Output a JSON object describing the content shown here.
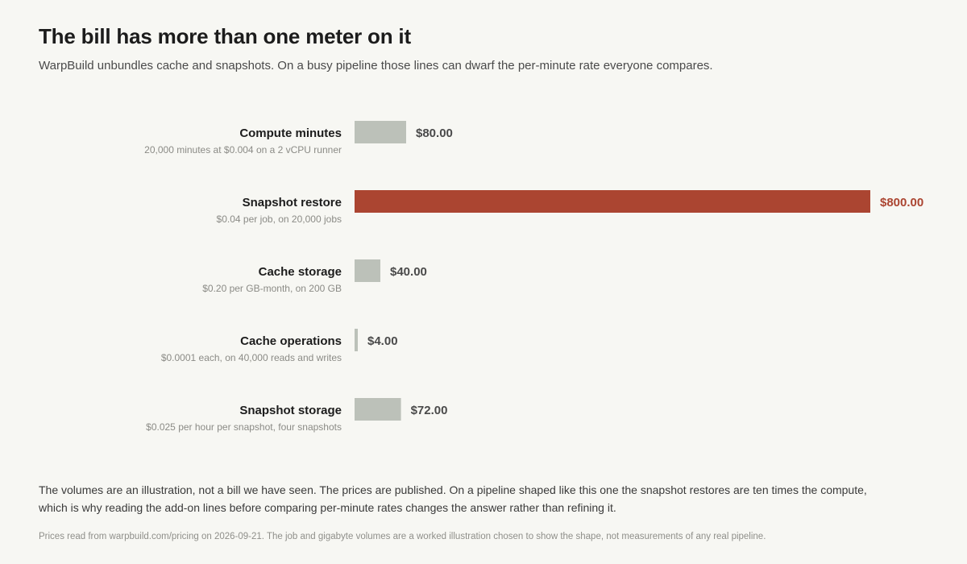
{
  "title": "The bill has more than one meter on it",
  "subtitle": "WarpBuild unbundles cache and snapshots. On a busy pipeline those lines can dwarf the per-minute rate everyone compares.",
  "chart_data": {
    "type": "bar",
    "orientation": "horizontal",
    "categories": [
      "Compute minutes",
      "Snapshot restore",
      "Cache storage",
      "Cache operations",
      "Snapshot storage"
    ],
    "descriptions": [
      "20,000 minutes at $0.004 on a 2 vCPU runner",
      "$0.04 per job, on 20,000 jobs",
      "$0.20 per GB-month, on 200 GB",
      "$0.0001 each, on 40,000 reads and writes",
      "$0.025 per hour per snapshot, four snapshots"
    ],
    "values": [
      80,
      800,
      40,
      4,
      72
    ],
    "value_labels": [
      "$80.00",
      "$800.00",
      "$40.00",
      "$4.00",
      "$72.00"
    ],
    "highlight_index": 1,
    "xlim": [
      0,
      800
    ],
    "grid": false,
    "legend": "none",
    "colors": {
      "bar": "#bcc1b9",
      "highlight": "#ab4531",
      "value_text": "#4a4a4a"
    }
  },
  "note": "The volumes are an illustration, not a bill we have seen. The prices are published. On a pipeline shaped like this one the snapshot restores are ten times the compute, which is why reading the add-on lines before comparing per-minute rates changes the answer rather than refining it.",
  "source": "Prices read from warpbuild.com/pricing on 2026-09-21. The job and gigabyte volumes are a worked illustration chosen to show the shape, not measurements of any real pipeline."
}
